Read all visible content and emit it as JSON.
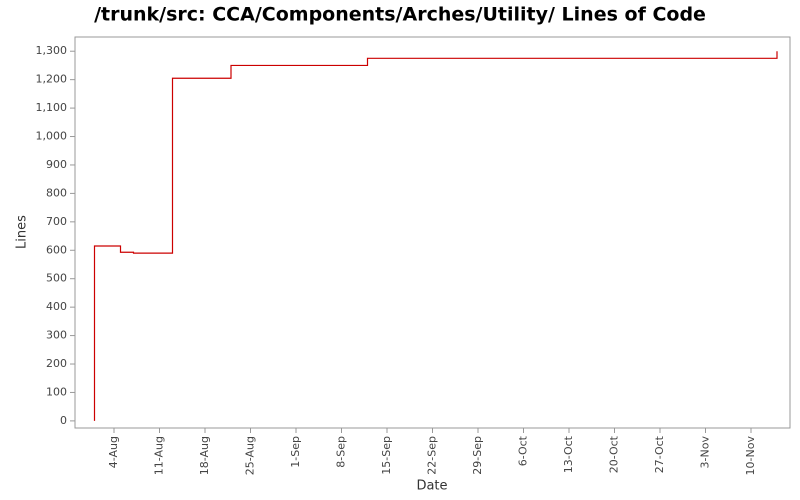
{
  "chart_data": {
    "type": "line",
    "step": true,
    "title": "/trunk/src: CCA/Components/Arches/Utility/ Lines of Code",
    "xlabel": "Date",
    "ylabel": "Lines",
    "color": "#cc0000",
    "x": [
      "1-Aug",
      "1-Aug",
      "5-Aug",
      "7-Aug",
      "13-Aug",
      "13-Aug",
      "22-Aug",
      "12-Sep",
      "14-Nov",
      "14-Nov"
    ],
    "values": [
      0,
      615,
      593,
      590,
      1025,
      1205,
      1250,
      1275,
      1275,
      1300
    ],
    "xlim": [
      "29-Jul",
      "16-Nov"
    ],
    "xticks": [
      "4-Aug",
      "11-Aug",
      "18-Aug",
      "25-Aug",
      "1-Sep",
      "8-Sep",
      "15-Sep",
      "22-Sep",
      "29-Sep",
      "6-Oct",
      "13-Oct",
      "20-Oct",
      "27-Oct",
      "3-Nov",
      "10-Nov"
    ],
    "ylim": [
      -25,
      1350
    ],
    "yticks": [
      0,
      100,
      200,
      300,
      400,
      500,
      600,
      700,
      800,
      900,
      {
        "value": 1000,
        "label": "1,000"
      },
      {
        "value": 1100,
        "label": "1,100"
      },
      {
        "value": 1200,
        "label": "1,200"
      },
      {
        "value": 1300,
        "label": "1,300"
      }
    ],
    "grid": false
  }
}
